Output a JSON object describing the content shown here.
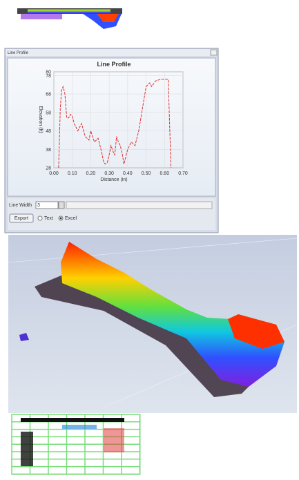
{
  "window": {
    "title": "Line Profile"
  },
  "chart_data": {
    "type": "line",
    "title": "Line Profile",
    "x_label": "Distance (in)",
    "y_label": "Elevation (ft)",
    "x": [
      0.026,
      0.035,
      0.042,
      0.05,
      0.06,
      0.07,
      0.08,
      0.09,
      0.1,
      0.11,
      0.12,
      0.13,
      0.15,
      0.17,
      0.19,
      0.2,
      0.22,
      0.24,
      0.25,
      0.26,
      0.27,
      0.28,
      0.29,
      0.3,
      0.31,
      0.32,
      0.33,
      0.34,
      0.35,
      0.36,
      0.37,
      0.38,
      0.39,
      0.4,
      0.42,
      0.44,
      0.45,
      0.46,
      0.47,
      0.48,
      0.49,
      0.5,
      0.52,
      0.53,
      0.55,
      0.58,
      0.6,
      0.62,
      0.635
    ],
    "values": [
      28,
      60,
      70,
      72,
      68,
      55,
      55,
      57,
      56,
      52,
      50,
      48,
      52,
      45,
      43,
      48,
      42,
      44,
      40,
      36,
      31,
      30,
      31,
      35,
      40,
      37,
      35,
      45,
      42,
      40,
      36,
      30,
      34,
      38,
      42,
      40,
      44,
      48,
      54,
      60,
      66,
      72,
      74,
      72,
      75,
      76,
      76,
      76,
      28
    ],
    "color": "#e03030",
    "xlim": [
      0,
      0.7
    ],
    "ylim": [
      28,
      80
    ],
    "xticks": [
      {
        "value": 0,
        "label": "0.00"
      },
      {
        "value": 0.1,
        "label": "0.10"
      },
      {
        "value": 0.2,
        "label": "0.20"
      },
      {
        "value": 0.3,
        "label": "0.30"
      },
      {
        "value": 0.4,
        "label": "0.40"
      },
      {
        "value": 0.5,
        "label": "0.50"
      },
      {
        "value": 0.6,
        "label": "0.60"
      },
      {
        "value": 0.7,
        "label": "0.70"
      }
    ],
    "yticks": [
      28,
      38,
      48,
      58,
      68,
      78,
      80
    ],
    "grid": true
  },
  "controls": {
    "line_width_label": "Line Width",
    "line_width_value": "3",
    "export": "Export",
    "option_text": "Text",
    "option_excel": "Excel"
  }
}
